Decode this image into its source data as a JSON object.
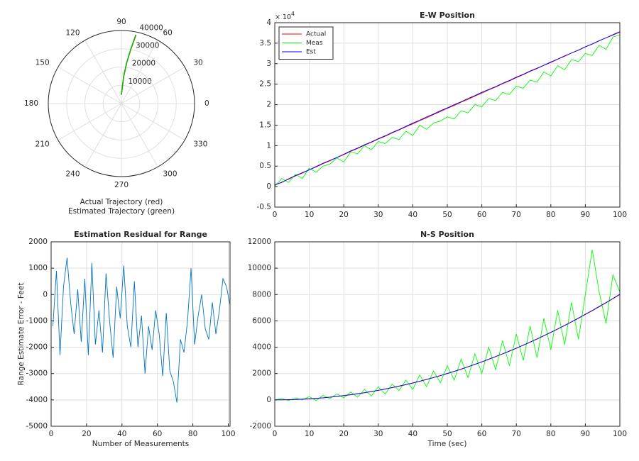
{
  "chart_data": [
    {
      "type": "polar",
      "xlabel": [
        "Actual Trajectory (red)",
        "Estimated Trajectory (green)"
      ],
      "rlim": [
        0,
        40000
      ],
      "rticks": [
        10000,
        20000,
        30000,
        40000
      ],
      "thetaticks": [
        0,
        30,
        60,
        90,
        120,
        150,
        180,
        210,
        240,
        270,
        300,
        330
      ],
      "grid": true,
      "series": [
        {
          "color": "#ff0000",
          "theta": [
            89.8,
            87.5,
            85.1,
            82.6,
            80.2,
            78.0
          ],
          "r": [
            5000,
            7400,
            14850,
            22390,
            30040,
            38340
          ]
        },
        {
          "color": "#00c000",
          "theta": [
            90.5,
            87.8,
            85.3,
            82.8,
            80.3,
            78.2
          ],
          "r": [
            4800,
            7500,
            14900,
            22300,
            30100,
            38500
          ]
        }
      ]
    },
    {
      "type": "line",
      "title": "E-W Position",
      "y_exponent_base": "× 10",
      "y_exponent": "4",
      "xlim": [
        0,
        100
      ],
      "xticks": [
        0,
        10,
        20,
        30,
        40,
        50,
        60,
        70,
        80,
        90,
        100
      ],
      "ylim": [
        -0.5,
        4
      ],
      "yticks": [
        -0.5,
        0,
        0.5,
        1,
        1.5,
        2,
        2.5,
        3,
        3.5,
        4
      ],
      "grid": true,
      "legend": "top-left",
      "x": [
        0,
        2,
        4,
        6,
        8,
        10,
        12,
        14,
        16,
        18,
        20,
        22,
        24,
        26,
        28,
        30,
        32,
        34,
        36,
        38,
        40,
        42,
        44,
        46,
        48,
        50,
        52,
        54,
        56,
        58,
        60,
        62,
        64,
        66,
        68,
        70,
        72,
        74,
        76,
        78,
        80,
        82,
        84,
        86,
        88,
        90,
        92,
        94,
        96,
        98,
        100
      ],
      "series": [
        {
          "name": "Actual",
          "color": "#ff0000",
          "values": [
            0.03,
            0.11,
            0.18,
            0.26,
            0.33,
            0.41,
            0.48,
            0.56,
            0.63,
            0.71,
            0.78,
            0.86,
            0.93,
            1.01,
            1.08,
            1.16,
            1.23,
            1.31,
            1.38,
            1.46,
            1.53,
            1.61,
            1.68,
            1.76,
            1.83,
            1.91,
            1.98,
            2.06,
            2.13,
            2.21,
            2.28,
            2.36,
            2.43,
            2.51,
            2.58,
            2.66,
            2.73,
            2.81,
            2.88,
            2.96,
            3.03,
            3.11,
            3.18,
            3.26,
            3.33,
            3.41,
            3.48,
            3.56,
            3.63,
            3.71,
            3.78
          ]
        },
        {
          "name": "Meas",
          "color": "#00ff00",
          "values": [
            0.0,
            0.2,
            0.1,
            0.3,
            0.2,
            0.45,
            0.35,
            0.5,
            0.55,
            0.7,
            0.6,
            0.85,
            0.8,
            1.0,
            0.9,
            1.1,
            1.05,
            1.2,
            1.15,
            1.35,
            1.25,
            1.5,
            1.4,
            1.55,
            1.6,
            1.7,
            1.65,
            1.85,
            1.8,
            2.0,
            1.95,
            2.15,
            2.1,
            2.3,
            2.25,
            2.45,
            2.4,
            2.6,
            2.55,
            2.8,
            2.7,
            2.95,
            2.85,
            3.1,
            3.05,
            3.25,
            3.2,
            3.45,
            3.35,
            3.65,
            3.7
          ]
        },
        {
          "name": "Est",
          "color": "#0000ff",
          "values": [
            0.05,
            0.1,
            0.19,
            0.27,
            0.34,
            0.41,
            0.49,
            0.57,
            0.64,
            0.71,
            0.79,
            0.87,
            0.94,
            1.02,
            1.09,
            1.17,
            1.24,
            1.32,
            1.39,
            1.47,
            1.55,
            1.62,
            1.7,
            1.77,
            1.85,
            1.92,
            2.0,
            2.07,
            2.15,
            2.22,
            2.3,
            2.37,
            2.44,
            2.52,
            2.59,
            2.67,
            2.74,
            2.82,
            2.89,
            2.96,
            3.04,
            3.11,
            3.19,
            3.26,
            3.33,
            3.41,
            3.48,
            3.56,
            3.63,
            3.7,
            3.77
          ]
        }
      ]
    },
    {
      "type": "line",
      "title": "Estimation Residual for Range",
      "xlabel": "Number of Measurements",
      "ylabel": "Range Estimate Error - Feet",
      "xlim": [
        0,
        101
      ],
      "xticks": [
        0,
        20,
        40,
        60,
        80,
        100
      ],
      "ylim": [
        -5000,
        2000
      ],
      "yticks": [
        -5000,
        -4000,
        -3000,
        -2000,
        -1000,
        0,
        1000,
        2000
      ],
      "grid": true,
      "x": [
        1,
        3,
        5,
        7,
        9,
        11,
        13,
        15,
        17,
        19,
        21,
        23,
        25,
        27,
        29,
        31,
        33,
        35,
        37,
        39,
        41,
        43,
        45,
        47,
        49,
        51,
        53,
        55,
        57,
        59,
        61,
        63,
        65,
        67,
        69,
        71,
        73,
        75,
        77,
        79,
        81,
        83,
        85,
        87,
        89,
        91,
        93,
        95,
        97,
        99,
        101
      ],
      "series": [
        {
          "color": "#0072bd",
          "values": [
            -1200,
            900,
            -2300,
            300,
            1400,
            -300,
            -1500,
            200,
            -1800,
            600,
            -2300,
            1200,
            -1900,
            -600,
            -2200,
            800,
            -1000,
            -2400,
            300,
            -900,
            1100,
            -1200,
            -2000,
            500,
            -2000,
            -800,
            -3000,
            -1200,
            -2100,
            -600,
            -1500,
            -3100,
            -700,
            -2900,
            -3300,
            -4100,
            -1700,
            -2200,
            -1000,
            1000,
            -1900,
            -800,
            0,
            -1300,
            -1700,
            -300,
            -1500,
            -600,
            600,
            300,
            -400
          ]
        }
      ]
    },
    {
      "type": "line",
      "title": "N-S Position",
      "xlabel": "Time (sec)",
      "xlim": [
        0,
        100
      ],
      "xticks": [
        0,
        10,
        20,
        30,
        40,
        50,
        60,
        70,
        80,
        90,
        100
      ],
      "ylim": [
        -2000,
        12000
      ],
      "yticks": [
        -2000,
        0,
        2000,
        4000,
        6000,
        8000,
        10000,
        12000
      ],
      "grid": true,
      "x": [
        0,
        2,
        4,
        6,
        8,
        10,
        12,
        14,
        16,
        18,
        20,
        22,
        24,
        26,
        28,
        30,
        32,
        34,
        36,
        38,
        40,
        42,
        44,
        46,
        48,
        50,
        52,
        54,
        56,
        58,
        60,
        62,
        64,
        66,
        68,
        70,
        72,
        74,
        76,
        78,
        80,
        82,
        84,
        86,
        88,
        90,
        92,
        94,
        96,
        98,
        100
      ],
      "series": [
        {
          "name": "Actual",
          "color": "#ff0000",
          "values": [
            0,
            3,
            13,
            29,
            51,
            80,
            115,
            157,
            205,
            259,
            320,
            387,
            461,
            541,
            627,
            720,
            819,
            925,
            1037,
            1155,
            1280,
            1411,
            1549,
            1693,
            1843,
            2000,
            2163,
            2333,
            2509,
            2691,
            2880,
            3075,
            3277,
            3485,
            3699,
            3920,
            4147,
            4381,
            4621,
            4867,
            5120,
            5379,
            5645,
            5917,
            6195,
            6480,
            6771,
            7069,
            7373,
            7683,
            8000
          ]
        },
        {
          "name": "Meas",
          "color": "#00ff00",
          "values": [
            0,
            100,
            -50,
            150,
            0,
            250,
            -50,
            350,
            100,
            450,
            150,
            600,
            200,
            800,
            300,
            1000,
            450,
            1200,
            700,
            1500,
            800,
            1900,
            1000,
            2200,
            1300,
            2600,
            1500,
            3100,
            1700,
            3500,
            2000,
            4000,
            2300,
            4500,
            2600,
            5000,
            3000,
            5600,
            3200,
            6200,
            3800,
            6800,
            4200,
            7400,
            4600,
            8000,
            11400,
            8200,
            5800,
            9500,
            8200
          ]
        },
        {
          "name": "Est",
          "color": "#0000ff",
          "values": [
            0,
            10,
            20,
            30,
            60,
            90,
            120,
            160,
            210,
            270,
            330,
            400,
            470,
            550,
            640,
            730,
            830,
            940,
            1050,
            1170,
            1290,
            1420,
            1560,
            1700,
            1850,
            2010,
            2170,
            2340,
            2520,
            2700,
            2890,
            3090,
            3290,
            3500,
            3710,
            3930,
            4160,
            4390,
            4630,
            4880,
            5130,
            5390,
            5660,
            5930,
            6210,
            6500,
            6790,
            7090,
            7390,
            7700,
            8020
          ]
        }
      ]
    }
  ]
}
